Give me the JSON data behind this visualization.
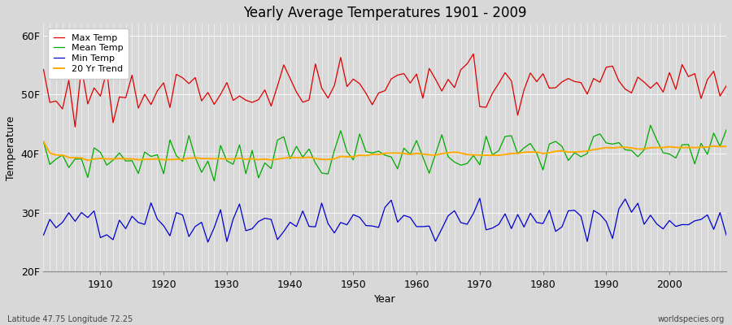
{
  "title": "Yearly Average Temperatures 1901 - 2009",
  "xlabel": "Year",
  "ylabel": "Temperature",
  "subtitle_left": "Latitude 47.75 Longitude 72.25",
  "subtitle_right": "worldspecies.org",
  "years_start": 1901,
  "years_end": 2009,
  "yticks": [
    20,
    30,
    40,
    50,
    60
  ],
  "ytick_labels": [
    "20F",
    "30F",
    "40F",
    "50F",
    "60F"
  ],
  "ylim": [
    20,
    62
  ],
  "xlim": [
    1901,
    2009
  ],
  "background_color": "#d8d8d8",
  "plot_bg_color": "#d8d8d8",
  "grid_color": "#ffffff",
  "max_temp_color": "#dd0000",
  "mean_temp_color": "#00aa00",
  "min_temp_color": "#0000cc",
  "trend_color": "#ffaa00",
  "legend_labels": [
    "Max Temp",
    "Mean Temp",
    "Min Temp",
    "20 Yr Trend"
  ],
  "seed": 42,
  "max_base": 50.2,
  "mean_base": 39.0,
  "min_base": 27.5,
  "max_noise": 2.5,
  "mean_noise": 1.8,
  "min_noise": 1.8,
  "trend_slope": 0.018,
  "linewidth": 0.9,
  "trend_linewidth": 1.4
}
